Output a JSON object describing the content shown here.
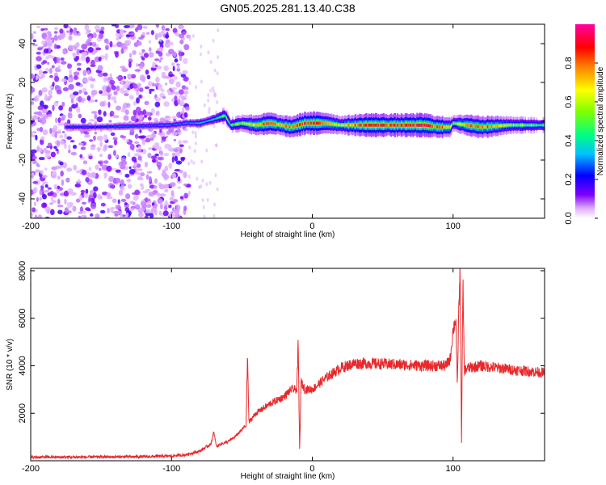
{
  "figure_title": "GN05.2025.281.13.40.C38",
  "chart_data": [
    {
      "type": "heatmap",
      "title": "GN05.2025.281.13.40.C38",
      "xlabel": "Height of straight line (km)",
      "ylabel": "Frequency (Hz)",
      "xlim": [
        -200,
        165
      ],
      "ylim": [
        -50,
        50
      ],
      "xticks": [
        "-200",
        "-100",
        "0",
        "100"
      ],
      "xtick_values": [
        -200,
        -100,
        0,
        100
      ],
      "yticks": [
        "-40",
        "-20",
        "0",
        "20",
        "40"
      ],
      "ytick_values": [
        -40,
        -20,
        0,
        20,
        40
      ],
      "colorbar": {
        "label": "Normalized spectral amplitude",
        "range": [
          0.0,
          1.0
        ],
        "ticks": [
          "0.0",
          "0.2",
          "0.4",
          "0.6",
          "0.8"
        ],
        "tick_values": [
          0.0,
          0.2,
          0.4,
          0.6,
          0.8
        ],
        "colors": [
          "#ffffff",
          "#e0b0ff",
          "#8000ff",
          "#0000ff",
          "#00c0ff",
          "#00ff80",
          "#80ff00",
          "#ffff00",
          "#ff8000",
          "#ff0000",
          "#ff00a0"
        ]
      },
      "ridge": {
        "x": [
          -175,
          -155,
          -100,
          -90,
          -80,
          -70,
          -62,
          -58,
          -50,
          -40,
          -30,
          -22,
          -15,
          -5,
          0,
          10,
          20,
          40,
          60,
          80,
          90,
          98,
          100,
          110,
          120,
          140,
          165
        ],
        "freq": [
          -3,
          -3,
          -2,
          -1,
          -1,
          1,
          3,
          -2,
          -1,
          -2,
          -1,
          -2,
          -3,
          -1,
          -1,
          -1,
          -2,
          -2,
          -2,
          -2,
          -3,
          -3,
          -1,
          -2,
          -3,
          -2,
          -2
        ],
        "amplitude": [
          0.25,
          0.25,
          0.3,
          0.3,
          0.35,
          0.4,
          0.55,
          0.5,
          0.6,
          0.75,
          0.8,
          0.7,
          0.8,
          0.85,
          0.85,
          0.8,
          0.65,
          0.9,
          0.85,
          0.9,
          0.8,
          0.75,
          0.5,
          0.8,
          0.85,
          0.6,
          0.5
        ]
      },
      "noise_region": [
        -200,
        -88
      ]
    },
    {
      "type": "line",
      "xlabel": "Height of straight line (km)",
      "ylabel": "SNR (10 * v/v)",
      "xlim": [
        -200,
        165
      ],
      "ylim": [
        0,
        8100
      ],
      "xticks": [
        "-200",
        "-100",
        "0",
        "100"
      ],
      "xtick_values": [
        -200,
        -100,
        0,
        100
      ],
      "yticks": [
        "2000",
        "4000",
        "6000",
        "8000"
      ],
      "ytick_values": [
        2000,
        4000,
        6000,
        8000
      ],
      "color": "#e8282b",
      "series": [
        {
          "name": "SNR",
          "x": [
            -200,
            -180,
            -150,
            -120,
            -100,
            -90,
            -80,
            -72,
            -70,
            -68,
            -65,
            -60,
            -55,
            -50,
            -47,
            -46,
            -45,
            -44,
            -40,
            -30,
            -20,
            -15,
            -11,
            -10,
            -9,
            -8,
            -5,
            0,
            10,
            20,
            25,
            30,
            40,
            60,
            80,
            95,
            98,
            100,
            102,
            103,
            104,
            105,
            106,
            107,
            108,
            110,
            120,
            140,
            165
          ],
          "y": [
            150,
            150,
            160,
            170,
            200,
            250,
            400,
            700,
            1200,
            600,
            700,
            800,
            1000,
            1300,
            1500,
            4500,
            1600,
            1700,
            2000,
            2400,
            2700,
            3000,
            3000,
            5000,
            400,
            3300,
            3000,
            3000,
            3500,
            3900,
            4000,
            4100,
            4100,
            4050,
            4000,
            4000,
            4300,
            5500,
            6000,
            3000,
            6200,
            8000,
            700,
            7500,
            3800,
            3900,
            4000,
            3850,
            3700
          ]
        }
      ]
    }
  ]
}
